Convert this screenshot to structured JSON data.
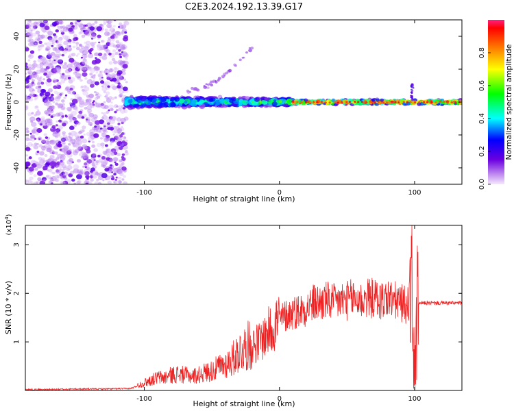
{
  "title": "C2E3.2024.192.13.39.G17",
  "colorbar": {
    "label": "Normalized spectral amplitude",
    "ticks": [
      "0.0",
      "0.2",
      "0.4",
      "0.6",
      "0.8"
    ],
    "tick_values": [
      0.0,
      0.2,
      0.4,
      0.6,
      0.8
    ],
    "range": [
      0,
      1
    ]
  },
  "chart_data": [
    {
      "type": "heatmap",
      "title": "C2E3.2024.192.13.39.G17",
      "xlabel": "Height of straight line (km)",
      "ylabel": "Frequency (Hz)",
      "xlim": [
        -188,
        135
      ],
      "ylim": [
        -50,
        50
      ],
      "x_ticks": [
        -100,
        0,
        100
      ],
      "x_tick_labels": [
        "-100",
        "0",
        "100"
      ],
      "y_ticks": [
        -40,
        -20,
        0,
        20,
        40
      ],
      "y_tick_labels": [
        "-40",
        "-20",
        "0",
        "20",
        "40"
      ],
      "grid": false,
      "regions": [
        {
          "x_range": [
            -188,
            -113
          ],
          "freq_spread": 50,
          "amplitude": 0.15,
          "description_level": "noise"
        },
        {
          "x_range": [
            -113,
            -20
          ],
          "freq_spread": 5,
          "amplitude": 0.45
        },
        {
          "x_range": [
            -20,
            10
          ],
          "freq_spread": 3,
          "amplitude": 0.55
        },
        {
          "x_range": [
            10,
            135
          ],
          "freq_spread": 2,
          "amplitude": 0.9
        }
      ],
      "streak": {
        "x": [
          -70,
          -20
        ],
        "y": [
          7,
          34
        ]
      },
      "spike": {
        "x": 98,
        "y": [
          0,
          12
        ]
      }
    },
    {
      "type": "line",
      "xlabel": "Height of straight line (km)",
      "ylabel": "SNR (10 * v/v)",
      "y_multiplier": "(x10",
      "y_multiplier_exp": "4",
      "y_multiplier_close": ")",
      "xlim": [
        -188,
        135
      ],
      "ylim": [
        0,
        3.4
      ],
      "x_ticks": [
        -100,
        0,
        100
      ],
      "x_tick_labels": [
        "-100",
        "0",
        "100"
      ],
      "y_ticks": [
        1,
        2,
        3
      ],
      "y_tick_labels": [
        "1",
        "2",
        "3"
      ],
      "grid": false,
      "color": "#ee2222",
      "series": [
        {
          "x": [
            -188,
            -170,
            -150,
            -130,
            -110,
            -100,
            -95,
            -90,
            -85,
            -80,
            -75,
            -70,
            -65,
            -60,
            -55,
            -50,
            -45,
            -40,
            -35,
            -30,
            -25,
            -20,
            -15,
            -10,
            -5,
            0,
            5,
            10,
            15,
            20,
            25,
            30,
            35,
            40,
            45,
            50,
            55,
            60,
            65,
            70,
            75,
            80,
            85,
            90,
            95,
            98,
            100,
            102,
            105,
            110,
            120,
            135
          ],
          "values": [
            0.02,
            0.02,
            0.03,
            0.03,
            0.04,
            0.15,
            0.2,
            0.25,
            0.25,
            0.3,
            0.32,
            0.3,
            0.28,
            0.3,
            0.35,
            0.38,
            0.45,
            0.5,
            0.6,
            0.75,
            0.85,
            0.9,
            0.95,
            1.1,
            1.25,
            1.45,
            1.55,
            1.6,
            1.65,
            1.7,
            1.8,
            1.8,
            1.85,
            1.8,
            1.85,
            1.85,
            1.9,
            1.85,
            1.9,
            1.9,
            1.85,
            1.9,
            1.85,
            1.8,
            1.75,
            2.2,
            0.2,
            1.75,
            1.8,
            1.8,
            1.8,
            1.8
          ]
        }
      ]
    }
  ]
}
